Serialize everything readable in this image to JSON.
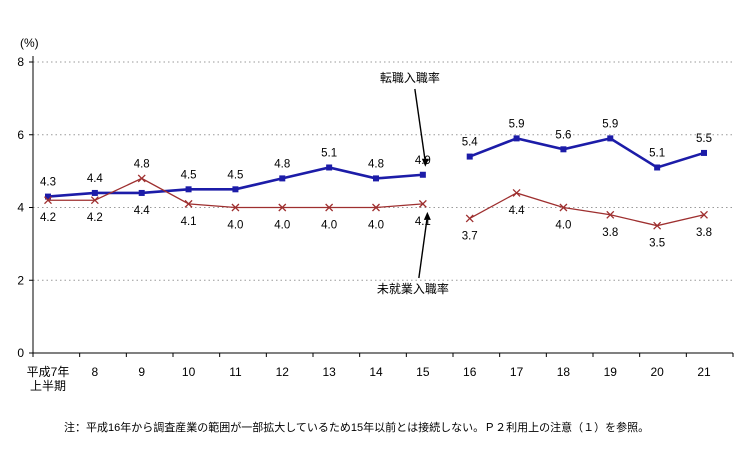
{
  "chart_data": {
    "type": "line",
    "title": "",
    "xlabel": "",
    "ylabel": "(%)",
    "ylim": [
      0,
      8
    ],
    "yticks": [
      0,
      2,
      4,
      6,
      8
    ],
    "grid": "dotted-horizontal",
    "legend": "none",
    "categories": [
      "平成7年\n上半期",
      "8",
      "9",
      "10",
      "11",
      "12",
      "13",
      "14",
      "15",
      "16",
      "17",
      "18",
      "19",
      "20",
      "21"
    ],
    "break_after_index": 8,
    "series": [
      {
        "name": "転職入職率",
        "color": "#1c1ca8",
        "marker": "square",
        "values": [
          4.3,
          4.4,
          4.4,
          4.5,
          4.5,
          4.8,
          5.1,
          4.8,
          4.9,
          5.4,
          5.9,
          5.6,
          5.9,
          5.1,
          5.5
        ]
      },
      {
        "name": "未就業入職率",
        "color": "#9e2f2f",
        "marker": "x",
        "values": [
          4.2,
          4.2,
          4.8,
          4.1,
          4.0,
          4.0,
          4.0,
          4.0,
          4.1,
          3.7,
          4.4,
          4.0,
          3.8,
          3.5,
          3.8
        ]
      }
    ],
    "annotations": [
      {
        "text": "転職入職率",
        "series_index": 0,
        "category_index": 8,
        "placement": "above"
      },
      {
        "text": "未就業入職率",
        "series_index": 1,
        "category_index": 8,
        "placement": "below"
      }
    ]
  },
  "note": "注：平成16年から調査産業の範囲が一部拡大しているため15年以前とは接続しない。Ｐ２利用上の注意（１）を参照。"
}
